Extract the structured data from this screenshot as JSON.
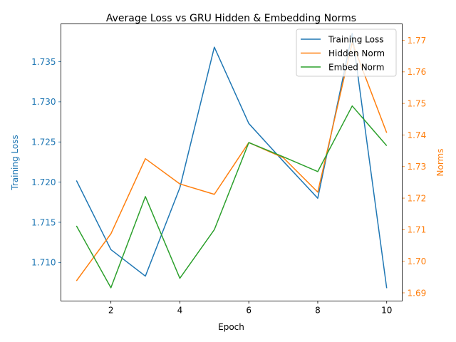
{
  "chart_data": {
    "type": "line",
    "title": "Average Loss vs GRU Hidden & Embedding Norms",
    "xlabel": "Epoch",
    "ylabel_left": "Training Loss",
    "ylabel_right": "Norms",
    "x": [
      1,
      2,
      3,
      4,
      5,
      6,
      7,
      8,
      9,
      10
    ],
    "xlim": [
      0.55,
      10.45
    ],
    "ylim_left": [
      1.7052,
      1.7397
    ],
    "ylim_right": [
      1.6874,
      1.7752
    ],
    "xticks": [
      2,
      4,
      6,
      8,
      10
    ],
    "yticks_left": [
      1.71,
      1.715,
      1.72,
      1.725,
      1.73,
      1.735
    ],
    "yticks_right": [
      1.69,
      1.7,
      1.71,
      1.72,
      1.73,
      1.74,
      1.75,
      1.76,
      1.77
    ],
    "grid": false,
    "legend_position": "top-right",
    "series": [
      {
        "name": "Training Loss",
        "axis": "left",
        "color": "#1f77b4",
        "values": [
          1.7202,
          1.7116,
          1.7083,
          1.7193,
          1.7368,
          1.7273,
          1.7226,
          1.718,
          1.7385,
          1.7068
        ]
      },
      {
        "name": "Hidden Norm",
        "axis": "right",
        "color": "#ff7f0e",
        "values": [
          1.6938,
          1.7087,
          1.7325,
          1.7245,
          1.7212,
          1.7376,
          1.7328,
          1.7219,
          1.7693,
          1.7407
        ]
      },
      {
        "name": "Embed Norm",
        "axis": "right",
        "color": "#2ca02c",
        "values": [
          1.7112,
          1.6916,
          1.7205,
          1.6946,
          1.71,
          1.7376,
          1.7331,
          1.7284,
          1.7492,
          1.7366
        ]
      }
    ]
  }
}
